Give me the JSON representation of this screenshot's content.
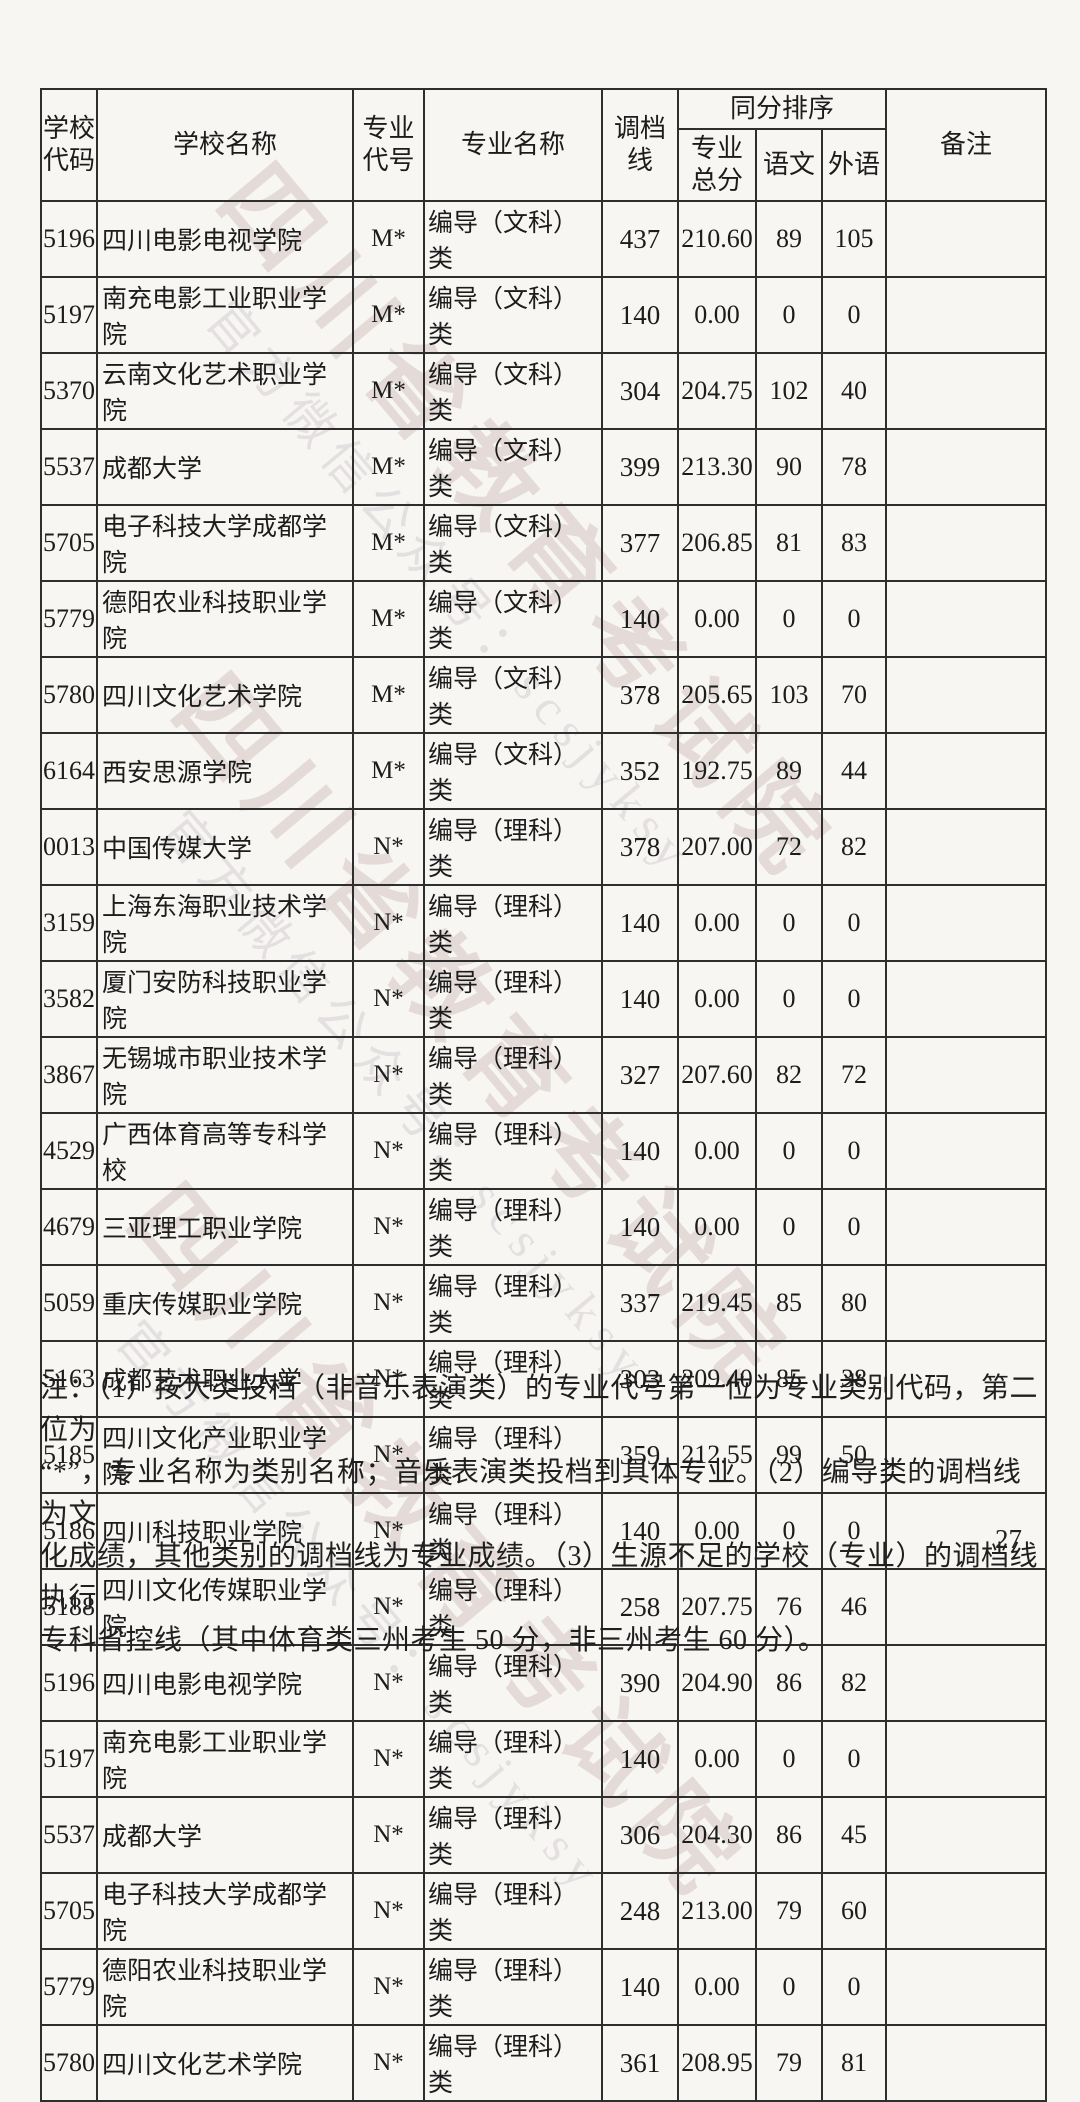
{
  "page": {
    "number": "27"
  },
  "watermark": {
    "line1": "四川省教育考试院",
    "line2": "官方微信公众号：scsjyksy"
  },
  "table": {
    "headers": {
      "school_code": "学校代码",
      "school_name": "学校名称",
      "major_code": "专业代号",
      "major_name": "专业名称",
      "cutoff_line": "调档线",
      "tie_break_group": "同分排序",
      "major_total": "专业总分",
      "chinese": "语文",
      "foreign_language": "外语",
      "remarks": "备注"
    },
    "rows": [
      {
        "school_code": "5196",
        "school_name": "四川电影电视学院",
        "major_code": "M*",
        "major_name": "编导（文科）类",
        "cutoff": "437",
        "major_total": "210.60",
        "chinese": "89",
        "foreign": "105",
        "remark": ""
      },
      {
        "school_code": "5197",
        "school_name": "南充电影工业职业学院",
        "major_code": "M*",
        "major_name": "编导（文科）类",
        "cutoff": "140",
        "major_total": "0.00",
        "chinese": "0",
        "foreign": "0",
        "remark": ""
      },
      {
        "school_code": "5370",
        "school_name": "云南文化艺术职业学院",
        "major_code": "M*",
        "major_name": "编导（文科）类",
        "cutoff": "304",
        "major_total": "204.75",
        "chinese": "102",
        "foreign": "40",
        "remark": ""
      },
      {
        "school_code": "5537",
        "school_name": "成都大学",
        "major_code": "M*",
        "major_name": "编导（文科）类",
        "cutoff": "399",
        "major_total": "213.30",
        "chinese": "90",
        "foreign": "78",
        "remark": ""
      },
      {
        "school_code": "5705",
        "school_name": "电子科技大学成都学院",
        "major_code": "M*",
        "major_name": "编导（文科）类",
        "cutoff": "377",
        "major_total": "206.85",
        "chinese": "81",
        "foreign": "83",
        "remark": ""
      },
      {
        "school_code": "5779",
        "school_name": "德阳农业科技职业学院",
        "major_code": "M*",
        "major_name": "编导（文科）类",
        "cutoff": "140",
        "major_total": "0.00",
        "chinese": "0",
        "foreign": "0",
        "remark": ""
      },
      {
        "school_code": "5780",
        "school_name": "四川文化艺术学院",
        "major_code": "M*",
        "major_name": "编导（文科）类",
        "cutoff": "378",
        "major_total": "205.65",
        "chinese": "103",
        "foreign": "70",
        "remark": ""
      },
      {
        "school_code": "6164",
        "school_name": "西安思源学院",
        "major_code": "M*",
        "major_name": "编导（文科）类",
        "cutoff": "352",
        "major_total": "192.75",
        "chinese": "89",
        "foreign": "44",
        "remark": ""
      },
      {
        "school_code": "0013",
        "school_name": "中国传媒大学",
        "major_code": "N*",
        "major_name": "编导（理科）类",
        "cutoff": "378",
        "major_total": "207.00",
        "chinese": "72",
        "foreign": "82",
        "remark": ""
      },
      {
        "school_code": "3159",
        "school_name": "上海东海职业技术学院",
        "major_code": "N*",
        "major_name": "编导（理科）类",
        "cutoff": "140",
        "major_total": "0.00",
        "chinese": "0",
        "foreign": "0",
        "remark": ""
      },
      {
        "school_code": "3582",
        "school_name": "厦门安防科技职业学院",
        "major_code": "N*",
        "major_name": "编导（理科）类",
        "cutoff": "140",
        "major_total": "0.00",
        "chinese": "0",
        "foreign": "0",
        "remark": ""
      },
      {
        "school_code": "3867",
        "school_name": "无锡城市职业技术学院",
        "major_code": "N*",
        "major_name": "编导（理科）类",
        "cutoff": "327",
        "major_total": "207.60",
        "chinese": "82",
        "foreign": "72",
        "remark": ""
      },
      {
        "school_code": "4529",
        "school_name": "广西体育高等专科学校",
        "major_code": "N*",
        "major_name": "编导（理科）类",
        "cutoff": "140",
        "major_total": "0.00",
        "chinese": "0",
        "foreign": "0",
        "remark": ""
      },
      {
        "school_code": "4679",
        "school_name": "三亚理工职业学院",
        "major_code": "N*",
        "major_name": "编导（理科）类",
        "cutoff": "140",
        "major_total": "0.00",
        "chinese": "0",
        "foreign": "0",
        "remark": ""
      },
      {
        "school_code": "5059",
        "school_name": "重庆传媒职业学院",
        "major_code": "N*",
        "major_name": "编导（理科）类",
        "cutoff": "337",
        "major_total": "219.45",
        "chinese": "85",
        "foreign": "80",
        "remark": ""
      },
      {
        "school_code": "5163",
        "school_name": "成都艺术职业大学",
        "major_code": "N*",
        "major_name": "编导（理科）类",
        "cutoff": "303",
        "major_total": "209.40",
        "chinese": "85",
        "foreign": "38",
        "remark": ""
      },
      {
        "school_code": "5185",
        "school_name": "四川文化产业职业学院",
        "major_code": "N*",
        "major_name": "编导（理科）类",
        "cutoff": "359",
        "major_total": "212.55",
        "chinese": "99",
        "foreign": "50",
        "remark": ""
      },
      {
        "school_code": "5186",
        "school_name": "四川科技职业学院",
        "major_code": "N*",
        "major_name": "编导（理科）类",
        "cutoff": "140",
        "major_total": "0.00",
        "chinese": "0",
        "foreign": "0",
        "remark": ""
      },
      {
        "school_code": "5188",
        "school_name": "四川文化传媒职业学院",
        "major_code": "N*",
        "major_name": "编导（理科）类",
        "cutoff": "258",
        "major_total": "207.75",
        "chinese": "76",
        "foreign": "46",
        "remark": ""
      },
      {
        "school_code": "5196",
        "school_name": "四川电影电视学院",
        "major_code": "N*",
        "major_name": "编导（理科）类",
        "cutoff": "390",
        "major_total": "204.90",
        "chinese": "86",
        "foreign": "82",
        "remark": ""
      },
      {
        "school_code": "5197",
        "school_name": "南充电影工业职业学院",
        "major_code": "N*",
        "major_name": "编导（理科）类",
        "cutoff": "140",
        "major_total": "0.00",
        "chinese": "0",
        "foreign": "0",
        "remark": ""
      },
      {
        "school_code": "5537",
        "school_name": "成都大学",
        "major_code": "N*",
        "major_name": "编导（理科）类",
        "cutoff": "306",
        "major_total": "204.30",
        "chinese": "86",
        "foreign": "45",
        "remark": ""
      },
      {
        "school_code": "5705",
        "school_name": "电子科技大学成都学院",
        "major_code": "N*",
        "major_name": "编导（理科）类",
        "cutoff": "248",
        "major_total": "213.00",
        "chinese": "79",
        "foreign": "60",
        "remark": ""
      },
      {
        "school_code": "5779",
        "school_name": "德阳农业科技职业学院",
        "major_code": "N*",
        "major_name": "编导（理科）类",
        "cutoff": "140",
        "major_total": "0.00",
        "chinese": "0",
        "foreign": "0",
        "remark": ""
      },
      {
        "school_code": "5780",
        "school_name": "四川文化艺术学院",
        "major_code": "N*",
        "major_name": "编导（理科）类",
        "cutoff": "361",
        "major_total": "208.95",
        "chinese": "79",
        "foreign": "81",
        "remark": ""
      }
    ]
  },
  "notes": {
    "lines": [
      "注：（1）按大类投档（非音乐表演类）的专业代号第一位为专业类别代码，第二位为",
      "“*”，专业名称为类别名称；音乐表演类投档到具体专业。（2）编导类的调档线为文",
      "化成绩，其他类别的调档线为专业成绩。（3）生源不足的学校（专业）的调档线执行",
      "专科省控线（其中体育类三州考生 50 分，非三州考生 60 分）。"
    ]
  }
}
